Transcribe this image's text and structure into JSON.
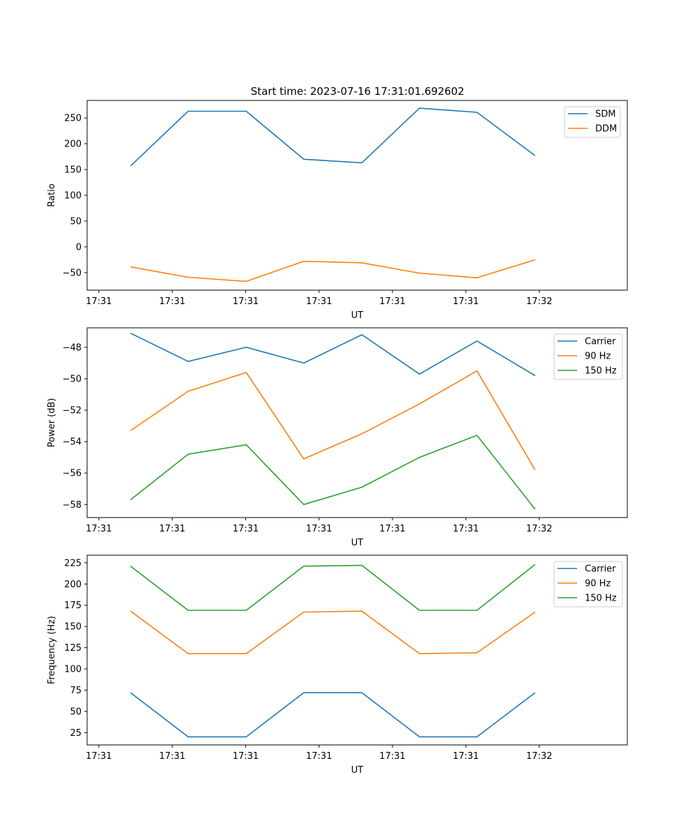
{
  "figure_title": "Start time: 2023-07-16 17:31:01.692602",
  "chart_data": [
    {
      "type": "line",
      "title": "Start time: 2023-07-16 17:31:01.692602",
      "xlabel": "UT",
      "ylabel": "Ratio",
      "x_tick_labels": [
        "17:31",
        "17:31",
        "17:31",
        "17:31",
        "17:31",
        "17:31",
        "17:32"
      ],
      "y_ticks": [
        -50,
        0,
        50,
        100,
        150,
        200,
        250
      ],
      "y_tick_labels": [
        "−50",
        "0",
        "50",
        "100",
        "150",
        "200",
        "250"
      ],
      "xlim": [
        -0.2,
        9.0
      ],
      "ylim": [
        -84,
        284
      ],
      "x": [
        0.54,
        1.52,
        2.51,
        3.49,
        4.48,
        5.46,
        6.44,
        7.43
      ],
      "legend": "top-right",
      "series": [
        {
          "name": "SDM",
          "color": "#1f77b4",
          "values": [
            157,
            263,
            263,
            170,
            163,
            269,
            261,
            177
          ]
        },
        {
          "name": "DDM",
          "color": "#ff7f0e",
          "values": [
            -39,
            -59,
            -67,
            -28,
            -31,
            -51,
            -60,
            -25
          ]
        }
      ]
    },
    {
      "type": "line",
      "title": "",
      "xlabel": "UT",
      "ylabel": "Power (dB)",
      "x_tick_labels": [
        "17:31",
        "17:31",
        "17:31",
        "17:31",
        "17:31",
        "17:31",
        "17:32"
      ],
      "y_ticks": [
        -58,
        -56,
        -54,
        -52,
        -50,
        -48
      ],
      "y_tick_labels": [
        "−58",
        "−56",
        "−54",
        "−52",
        "−50",
        "−48"
      ],
      "xlim": [
        -0.2,
        9.0
      ],
      "ylim": [
        -58.83,
        -46.76
      ],
      "x": [
        0.54,
        1.52,
        2.51,
        3.49,
        4.48,
        5.46,
        6.44,
        7.43
      ],
      "legend": "top-right",
      "series": [
        {
          "name": "Carrier",
          "color": "#1f77b4",
          "values": [
            -47.1,
            -48.9,
            -48.0,
            -49.0,
            -47.2,
            -49.7,
            -47.6,
            -49.8
          ]
        },
        {
          "name": "90 Hz",
          "color": "#ff7f0e",
          "values": [
            -53.3,
            -50.8,
            -49.6,
            -55.1,
            -53.5,
            -51.6,
            -49.5,
            -55.8
          ]
        },
        {
          "name": "150 Hz",
          "color": "#2ca02c",
          "values": [
            -57.7,
            -54.8,
            -54.2,
            -58.0,
            -56.9,
            -55.0,
            -53.6,
            -58.3
          ]
        }
      ]
    },
    {
      "type": "line",
      "title": "",
      "xlabel": "UT",
      "ylabel": "Frequency (Hz)",
      "x_tick_labels": [
        "17:31",
        "17:31",
        "17:31",
        "17:31",
        "17:31",
        "17:31",
        "17:32"
      ],
      "y_ticks": [
        25,
        50,
        75,
        100,
        125,
        150,
        175,
        200,
        225
      ],
      "y_tick_labels": [
        "25",
        "50",
        "75",
        "100",
        "125",
        "150",
        "175",
        "200",
        "225"
      ],
      "xlim": [
        -0.2,
        9.0
      ],
      "ylim": [
        10.5,
        233.9
      ],
      "x": [
        0.54,
        1.52,
        2.51,
        3.49,
        4.48,
        5.46,
        6.44,
        7.43
      ],
      "legend": "top-right",
      "series": [
        {
          "name": "Carrier",
          "color": "#1f77b4",
          "values": [
            72,
            20,
            20,
            72,
            72,
            20,
            20,
            72
          ]
        },
        {
          "name": "90 Hz",
          "color": "#ff7f0e",
          "values": [
            168,
            118,
            118,
            167,
            168,
            118,
            119,
            167
          ]
        },
        {
          "name": "150 Hz",
          "color": "#2ca02c",
          "values": [
            221,
            169,
            169,
            221,
            222,
            169,
            169,
            223
          ]
        }
      ]
    }
  ]
}
